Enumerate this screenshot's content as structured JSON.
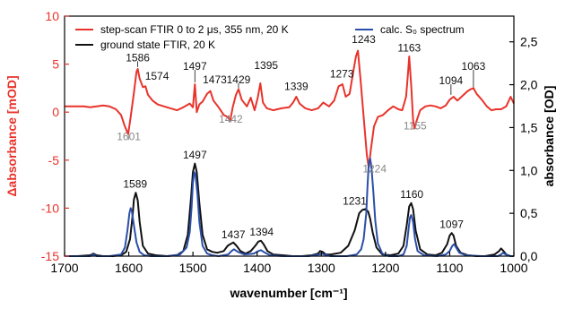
{
  "chart_data": {
    "type": "line",
    "xlabel": "wavenumber [cm⁻¹]",
    "ylabel_left": "Δabsorbance [mOD]",
    "ylabel_right": "absorbance [OD]",
    "xlim": [
      1700,
      1000
    ],
    "xticks": [
      1700,
      1600,
      1500,
      1400,
      1300,
      1200,
      1100,
      1000
    ],
    "ylim_left": [
      -15,
      10
    ],
    "yticks_left": [
      10,
      5,
      0,
      -5,
      -10,
      -15
    ],
    "ylim_right": [
      0.0,
      2.8
    ],
    "yticks_right": [
      "0,0",
      "0,5",
      "1,0",
      "1,5",
      "2,0",
      "2,5"
    ],
    "yticks_right_values": [
      0.0,
      0.5,
      1.0,
      1.5,
      2.0,
      2.5
    ],
    "legend": [
      {
        "label": "step-scan FTIR 0 to 2 μs, 355 nm, 20 K",
        "color": "#e8332b"
      },
      {
        "label": "ground state FTIR, 20 K",
        "color": "#111111"
      },
      {
        "label": "calc. S₀ spectrum",
        "color": "#2b4fa8"
      }
    ],
    "series": [
      {
        "name": "step-scan FTIR 0 to 2 μs, 355 nm, 20 K",
        "axis": "left",
        "color": "#e8332b",
        "x": [
          1700,
          1690,
          1680,
          1670,
          1660,
          1650,
          1640,
          1630,
          1620,
          1612,
          1606,
          1601,
          1597,
          1592,
          1588,
          1586,
          1583,
          1578,
          1574,
          1570,
          1563,
          1555,
          1545,
          1535,
          1525,
          1515,
          1505,
          1500,
          1497,
          1494,
          1490,
          1485,
          1478,
          1473,
          1468,
          1460,
          1452,
          1446,
          1442,
          1438,
          1433,
          1429,
          1424,
          1416,
          1410,
          1404,
          1399,
          1395,
          1391,
          1385,
          1375,
          1362,
          1350,
          1344,
          1339,
          1334,
          1325,
          1315,
          1305,
          1297,
          1288,
          1280,
          1273,
          1267,
          1262,
          1256,
          1250,
          1246,
          1243,
          1239,
          1234,
          1229,
          1226,
          1223,
          1218,
          1212,
          1204,
          1196,
          1188,
          1180,
          1174,
          1168,
          1165,
          1163,
          1160,
          1157,
          1155,
          1152,
          1146,
          1138,
          1130,
          1122,
          1114,
          1106,
          1100,
          1094,
          1088,
          1080,
          1072,
          1067,
          1063,
          1058,
          1050,
          1042,
          1035,
          1028,
          1020,
          1012,
          1005,
          1000
        ],
        "y": [
          0.6,
          0.6,
          0.6,
          0.6,
          0.5,
          0.6,
          0.7,
          0.6,
          0.3,
          -0.3,
          -1.5,
          -2.3,
          -0.5,
          2.0,
          4.2,
          4.5,
          3.5,
          2.6,
          2.7,
          1.8,
          1.2,
          0.8,
          0.6,
          0.4,
          0.2,
          0.5,
          0.9,
          0.5,
          2.9,
          0.0,
          0.8,
          1.1,
          1.9,
          2.2,
          1.2,
          0.5,
          -0.3,
          -0.5,
          -0.9,
          0.5,
          1.8,
          2.4,
          1.3,
          0.6,
          1.5,
          0.2,
          1.5,
          3.0,
          1.0,
          0.4,
          0.2,
          0.4,
          0.5,
          1.0,
          1.6,
          0.9,
          0.4,
          0.2,
          0.4,
          1.0,
          0.6,
          1.2,
          2.7,
          2.9,
          1.6,
          1.9,
          4.3,
          5.8,
          6.4,
          3.5,
          -0.5,
          -4.5,
          -5.8,
          -4.0,
          -1.5,
          -0.5,
          -0.3,
          0.2,
          0.6,
          0.3,
          0.2,
          1.6,
          4.0,
          5.8,
          2.8,
          -0.8,
          -1.7,
          -1.0,
          0.2,
          0.6,
          0.7,
          0.6,
          0.4,
          0.7,
          1.3,
          1.6,
          1.2,
          1.7,
          2.2,
          2.4,
          2.5,
          1.9,
          1.3,
          0.6,
          0.2,
          0.3,
          0.3,
          0.6,
          1.6,
          0.9
        ]
      },
      {
        "name": "ground state FTIR, 20 K",
        "axis": "right",
        "color": "#111111",
        "x": [
          1700,
          1680,
          1660,
          1655,
          1650,
          1640,
          1625,
          1612,
          1604,
          1598,
          1594,
          1592,
          1589,
          1586,
          1583,
          1578,
          1570,
          1558,
          1540,
          1525,
          1515,
          1508,
          1503,
          1500,
          1497,
          1494,
          1490,
          1485,
          1478,
          1470,
          1462,
          1452,
          1446,
          1442,
          1437,
          1432,
          1426,
          1418,
          1410,
          1403,
          1398,
          1394,
          1390,
          1384,
          1375,
          1360,
          1345,
          1330,
          1315,
          1305,
          1302,
          1298,
          1293,
          1285,
          1270,
          1258,
          1248,
          1241,
          1236,
          1231,
          1227,
          1224,
          1220,
          1214,
          1205,
          1192,
          1180,
          1172,
          1167,
          1163,
          1160,
          1157,
          1153,
          1146,
          1135,
          1122,
          1112,
          1104,
          1100,
          1097,
          1094,
          1090,
          1083,
          1072,
          1058,
          1045,
          1030,
          1023,
          1020,
          1016,
          1012,
          1005,
          1000
        ],
        "y": [
          0.0,
          0.0,
          0.01,
          0.03,
          0.01,
          0.0,
          0.0,
          0.01,
          0.05,
          0.2,
          0.48,
          0.66,
          0.74,
          0.65,
          0.4,
          0.12,
          0.03,
          0.01,
          0.0,
          0.01,
          0.06,
          0.25,
          0.68,
          0.98,
          1.08,
          0.98,
          0.62,
          0.25,
          0.08,
          0.05,
          0.04,
          0.06,
          0.12,
          0.14,
          0.16,
          0.12,
          0.06,
          0.03,
          0.06,
          0.12,
          0.17,
          0.18,
          0.14,
          0.06,
          0.02,
          0.01,
          0.0,
          0.0,
          0.01,
          0.03,
          0.06,
          0.05,
          0.02,
          0.02,
          0.04,
          0.12,
          0.3,
          0.5,
          0.54,
          0.55,
          0.52,
          0.44,
          0.28,
          0.1,
          0.02,
          0.01,
          0.03,
          0.12,
          0.36,
          0.58,
          0.62,
          0.55,
          0.3,
          0.08,
          0.02,
          0.01,
          0.04,
          0.14,
          0.24,
          0.27,
          0.24,
          0.12,
          0.04,
          0.01,
          0.0,
          0.0,
          0.02,
          0.06,
          0.09,
          0.06,
          0.02,
          0.0,
          0.0
        ]
      },
      {
        "name": "calc. S₀ spectrum",
        "axis": "right",
        "color": "#2b4fa8",
        "x": [
          1700,
          1660,
          1655,
          1650,
          1630,
          1612,
          1606,
          1602,
          1599,
          1597,
          1595,
          1592,
          1588,
          1583,
          1576,
          1565,
          1540,
          1520,
          1510,
          1505,
          1502,
          1500,
          1498,
          1496,
          1493,
          1490,
          1485,
          1478,
          1470,
          1460,
          1445,
          1440,
          1436,
          1430,
          1420,
          1405,
          1398,
          1394,
          1390,
          1380,
          1360,
          1320,
          1303,
          1300,
          1296,
          1285,
          1260,
          1245,
          1238,
          1234,
          1230,
          1228,
          1226,
          1224,
          1222,
          1219,
          1216,
          1212,
          1205,
          1195,
          1180,
          1172,
          1167,
          1164,
          1162,
          1160,
          1157,
          1154,
          1150,
          1140,
          1120,
          1106,
          1100,
          1096,
          1093,
          1090,
          1085,
          1075,
          1050,
          1025,
          1020,
          1017,
          1013,
          1005,
          1000
        ],
        "y": [
          0.0,
          0.0,
          0.02,
          0.0,
          0.0,
          0.02,
          0.1,
          0.3,
          0.5,
          0.56,
          0.52,
          0.36,
          0.16,
          0.05,
          0.01,
          0.0,
          0.0,
          0.02,
          0.1,
          0.28,
          0.58,
          0.86,
          0.98,
          0.95,
          0.72,
          0.4,
          0.12,
          0.03,
          0.01,
          0.0,
          0.02,
          0.06,
          0.08,
          0.05,
          0.02,
          0.03,
          0.06,
          0.07,
          0.05,
          0.01,
          0.0,
          0.0,
          0.02,
          0.03,
          0.02,
          0.0,
          0.0,
          0.02,
          0.08,
          0.2,
          0.5,
          0.82,
          1.08,
          1.14,
          1.05,
          0.75,
          0.42,
          0.15,
          0.03,
          0.0,
          0.0,
          0.02,
          0.12,
          0.32,
          0.45,
          0.48,
          0.4,
          0.2,
          0.06,
          0.01,
          0.0,
          0.02,
          0.06,
          0.12,
          0.14,
          0.1,
          0.04,
          0.01,
          0.0,
          0.0,
          0.02,
          0.04,
          0.02,
          0.0,
          0.0
        ]
      }
    ],
    "annotations": [
      {
        "text": "1586",
        "x": 1586,
        "y": 5.3,
        "axis": "left",
        "color": "#111111",
        "leader": [
          4.7,
          5.3
        ]
      },
      {
        "text": "1574",
        "x": 1556,
        "y": 3.4,
        "axis": "left",
        "color": "#111111"
      },
      {
        "text": "1497",
        "x": 1497,
        "y": 4.4,
        "axis": "left",
        "color": "#111111",
        "leader": [
          3.1,
          4.4
        ]
      },
      {
        "text": "1473",
        "x": 1466,
        "y": 3.0,
        "axis": "left",
        "color": "#111111"
      },
      {
        "text": "1429",
        "x": 1429,
        "y": 3.0,
        "axis": "left",
        "color": "#111111",
        "leader": [
          2.5,
          3.0
        ]
      },
      {
        "text": "1395",
        "x": 1386,
        "y": 4.5,
        "axis": "left",
        "color": "#111111"
      },
      {
        "text": "1339",
        "x": 1339,
        "y": 2.3,
        "axis": "left",
        "color": "#111111"
      },
      {
        "text": "1273",
        "x": 1268,
        "y": 3.6,
        "axis": "left",
        "color": "#111111"
      },
      {
        "text": "1243",
        "x": 1234,
        "y": 7.2,
        "axis": "left",
        "color": "#111111"
      },
      {
        "text": "1163",
        "x": 1163,
        "y": 6.3,
        "axis": "left",
        "color": "#111111"
      },
      {
        "text": "1094",
        "x": 1098,
        "y": 2.9,
        "axis": "left",
        "color": "#111111",
        "leader": [
          1.8,
          2.9
        ]
      },
      {
        "text": "1063",
        "x": 1063,
        "y": 4.4,
        "axis": "left",
        "color": "#111111",
        "leader": [
          2.6,
          4.4
        ]
      },
      {
        "text": "1601",
        "x": 1600,
        "y": -2.9,
        "axis": "left",
        "color": "#888888",
        "leader": [
          -2.4,
          -2.9
        ]
      },
      {
        "text": "1442",
        "x": 1441,
        "y": -1.1,
        "axis": "left",
        "color": "#888888",
        "leader": [
          -0.9,
          -1.1
        ]
      },
      {
        "text": "1224",
        "x": 1217,
        "y": -6.3,
        "axis": "left",
        "color": "#888888"
      },
      {
        "text": "1155",
        "x": 1154,
        "y": -1.8,
        "axis": "left",
        "color": "#888888",
        "leader": [
          -1.7,
          -1.8
        ]
      },
      {
        "text": "1589",
        "x": 1590,
        "y": 0.8,
        "axis": "right",
        "color": "#111111"
      },
      {
        "text": "1497",
        "x": 1497,
        "y": 1.14,
        "axis": "right",
        "color": "#111111"
      },
      {
        "text": "1437",
        "x": 1437,
        "y": 0.21,
        "axis": "right",
        "color": "#111111"
      },
      {
        "text": "1394",
        "x": 1393,
        "y": 0.24,
        "axis": "right",
        "color": "#111111"
      },
      {
        "text": "1231",
        "x": 1248,
        "y": 0.6,
        "axis": "right",
        "color": "#111111"
      },
      {
        "text": "1160",
        "x": 1159,
        "y": 0.68,
        "axis": "right",
        "color": "#111111"
      },
      {
        "text": "1097",
        "x": 1097,
        "y": 0.33,
        "axis": "right",
        "color": "#111111"
      }
    ],
    "grid": false,
    "legend_position": "top"
  }
}
